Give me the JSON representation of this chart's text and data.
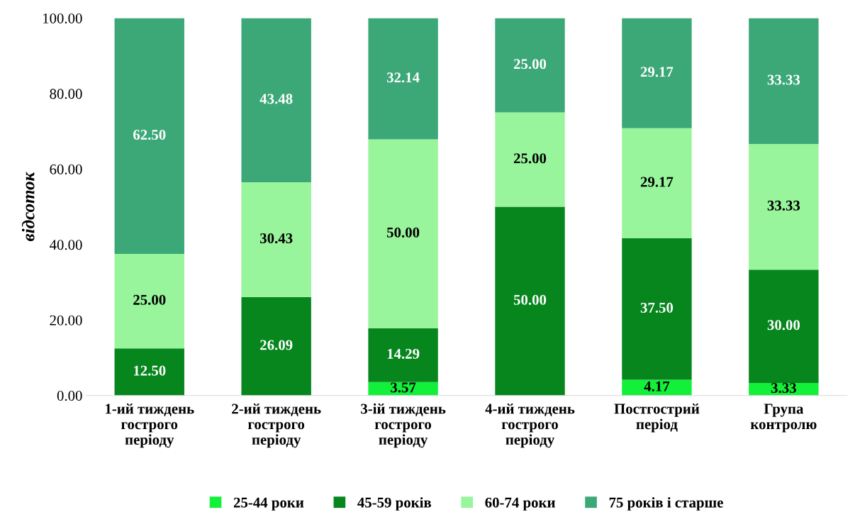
{
  "chart_data": {
    "type": "bar",
    "stacked": true,
    "ylabel": "відсоток",
    "categories": [
      "1-ий тиждень\nгострого\nперіоду",
      "2-ий тиждень\nгострого\nперіоду",
      "3-ій тиждень\nгострого\nперіоду",
      "4-ий тиждень\nгострого\nперіоду",
      "Постгострий\nперіод",
      "Група\nконтролю"
    ],
    "series": [
      {
        "name": "25-44 роки",
        "color": "#13f03a",
        "values": [
          null,
          null,
          3.57,
          null,
          4.17,
          3.33
        ],
        "value_labels": [
          null,
          null,
          "3.57",
          null,
          "4.17",
          "3.33"
        ]
      },
      {
        "name": "45-59 років",
        "color": "#07861e",
        "values": [
          12.5,
          26.09,
          14.29,
          50.0,
          37.5,
          30.0
        ],
        "value_labels": [
          "12.50",
          "26.09",
          "14.29",
          "50.00",
          "37.50",
          "30.00"
        ]
      },
      {
        "name": "60-74 роки",
        "color": "#98f59b",
        "values": [
          25.0,
          30.43,
          50.0,
          25.0,
          29.17,
          33.33
        ],
        "value_labels": [
          "25.00",
          "30.43",
          "50.00",
          "25.00",
          "29.17",
          "33.33"
        ]
      },
      {
        "name": "75 років і старше",
        "color": "#3ca878",
        "values": [
          62.5,
          43.48,
          32.14,
          25.0,
          29.17,
          33.33
        ],
        "value_labels": [
          "62.50",
          "43.48",
          "32.14",
          "25.00",
          "29.17",
          "33.33"
        ]
      }
    ],
    "ylim": [
      0,
      100
    ],
    "yticks": [
      {
        "value": 0,
        "label": "0.00"
      },
      {
        "value": 20,
        "label": "20.00"
      },
      {
        "value": 40,
        "label": "40.00"
      },
      {
        "value": 60,
        "label": "60.00"
      },
      {
        "value": 80,
        "label": "80.00"
      },
      {
        "value": 100,
        "label": "100.00"
      }
    ],
    "grid": false,
    "legend": "bottom"
  }
}
